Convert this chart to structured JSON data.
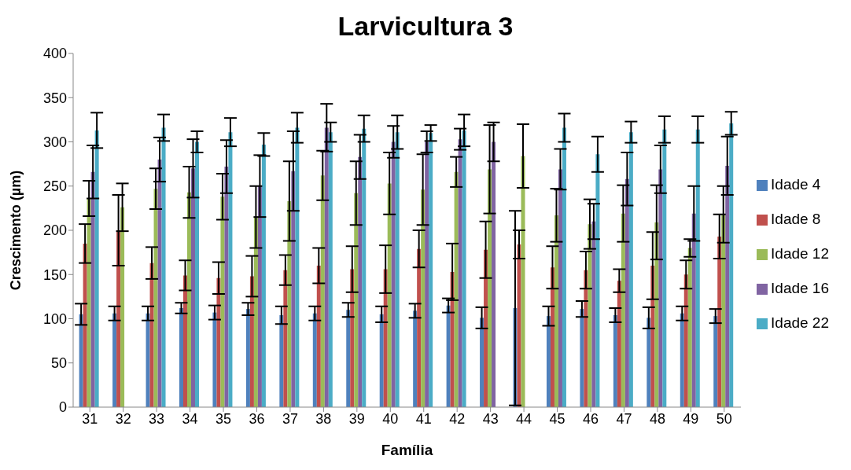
{
  "chart_data": {
    "type": "bar",
    "title": "Larvicultura 3",
    "xlabel": "Família",
    "ylabel": "Crescimento (µm)",
    "categories": [
      "31",
      "32",
      "33",
      "34",
      "35",
      "36",
      "37",
      "38",
      "39",
      "40",
      "41",
      "42",
      "43",
      "44",
      "45",
      "46",
      "47",
      "48",
      "49",
      "50"
    ],
    "series": [
      {
        "name": "Idade 4",
        "color": "#4f81bd",
        "values": [
          105,
          106,
          106,
          112,
          107,
          111,
          104,
          106,
          110,
          105,
          109,
          115,
          101,
          112,
          103,
          111,
          104,
          101,
          106,
          103
        ],
        "errors": [
          12,
          8,
          8,
          6,
          8,
          7,
          10,
          8,
          8,
          9,
          8,
          8,
          12,
          110,
          11,
          9,
          8,
          12,
          8,
          8
        ]
      },
      {
        "name": "Idade 8",
        "color": "#c0504d",
        "values": [
          185,
          200,
          163,
          149,
          146,
          148,
          155,
          160,
          156,
          156,
          179,
          153,
          178,
          184,
          158,
          155,
          143,
          160,
          150,
          193
        ],
        "errors": [
          22,
          40,
          18,
          17,
          18,
          23,
          17,
          20,
          26,
          27,
          21,
          32,
          32,
          16,
          24,
          21,
          13,
          38,
          16,
          25
        ]
      },
      {
        "name": "Idade 12",
        "color": "#9bbb59",
        "values": [
          236,
          226,
          247,
          243,
          238,
          215,
          233,
          262,
          242,
          253,
          246,
          266,
          269,
          284,
          217,
          207,
          219,
          209,
          180,
          218
        ],
        "errors": [
          20,
          27,
          23,
          29,
          26,
          35,
          45,
          28,
          36,
          35,
          40,
          17,
          50,
          36,
          30,
          28,
          32,
          42,
          10,
          32
        ]
      },
      {
        "name": "Idade 16",
        "color": "#8064a2",
        "values": [
          266,
          null,
          280,
          270,
          272,
          250,
          267,
          316,
          283,
          300,
          300,
          303,
          300,
          null,
          269,
          210,
          258,
          269,
          219,
          273
        ],
        "errors": [
          30,
          null,
          25,
          33,
          30,
          35,
          45,
          27,
          25,
          18,
          12,
          12,
          22,
          null,
          23,
          20,
          30,
          27,
          31,
          33
        ]
      },
      {
        "name": "Idade 22",
        "color": "#4bacc6",
        "values": [
          313,
          null,
          316,
          300,
          311,
          297,
          316,
          311,
          315,
          311,
          310,
          313,
          null,
          null,
          316,
          286,
          311,
          314,
          314,
          321
        ],
        "errors": [
          20,
          null,
          15,
          12,
          16,
          13,
          17,
          11,
          15,
          19,
          9,
          18,
          null,
          null,
          16,
          20,
          12,
          15,
          15,
          13
        ]
      }
    ],
    "ylim": [
      0,
      400
    ],
    "yticks": [
      0,
      50,
      100,
      150,
      200,
      250,
      300,
      350,
      400
    ],
    "grid": false,
    "legend": "right"
  }
}
